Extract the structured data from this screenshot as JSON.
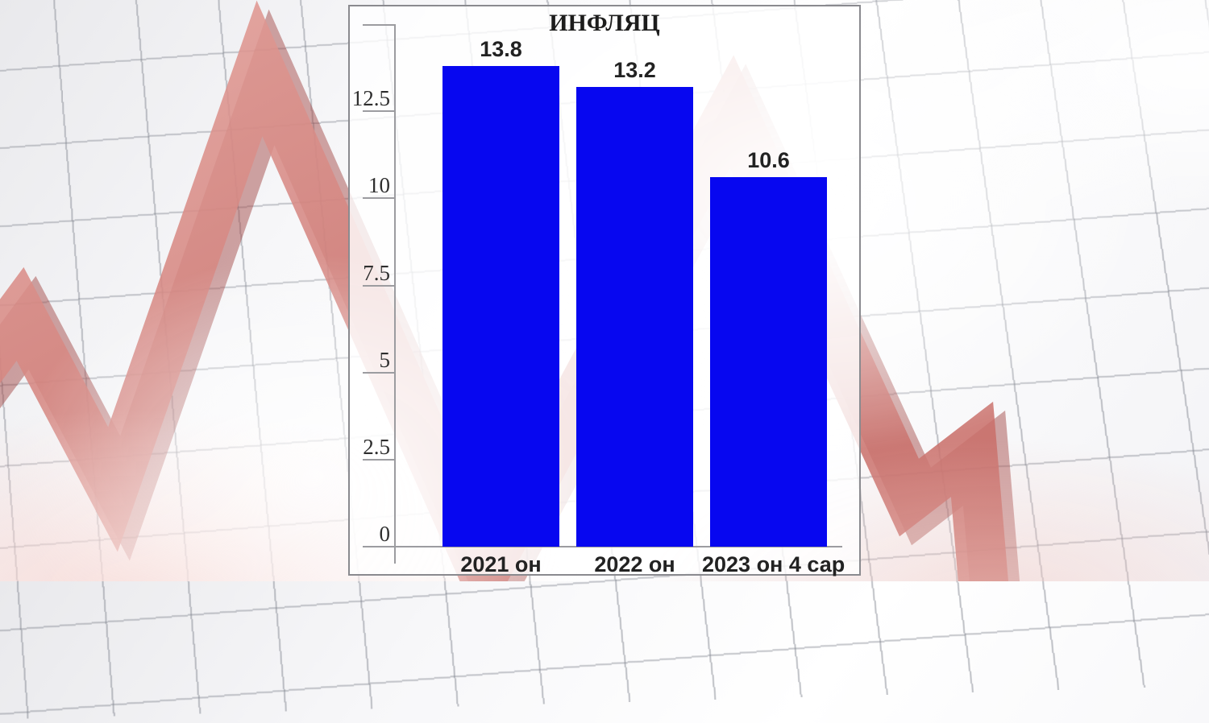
{
  "background": {
    "description": "graph-paper grid photo with red 3d declining zigzag arrow",
    "arrow_color": "#cf7b76",
    "grid_line_color": "#80848e"
  },
  "chart_card": {
    "border_color": "#8a8a8f",
    "background_opacity": "80%"
  },
  "chart_data": {
    "type": "bar",
    "title": "ИНФЛЯЦ",
    "categories": [
      "2021 он",
      "2022 он",
      "2023 он 4 сар"
    ],
    "values": [
      13.8,
      13.2,
      10.6
    ],
    "data_labels": [
      "13.8",
      "13.2",
      "10.6"
    ],
    "yticks": [
      0,
      2.5,
      5,
      7.5,
      10,
      12.5
    ],
    "ytick_labels": [
      "0",
      "2.5",
      "5",
      "7.5",
      "10",
      "12.5"
    ],
    "ylim": [
      0,
      15
    ],
    "xlabel": "",
    "ylabel": "",
    "bar_color": "#0707f0",
    "grid": false,
    "legend": false
  }
}
